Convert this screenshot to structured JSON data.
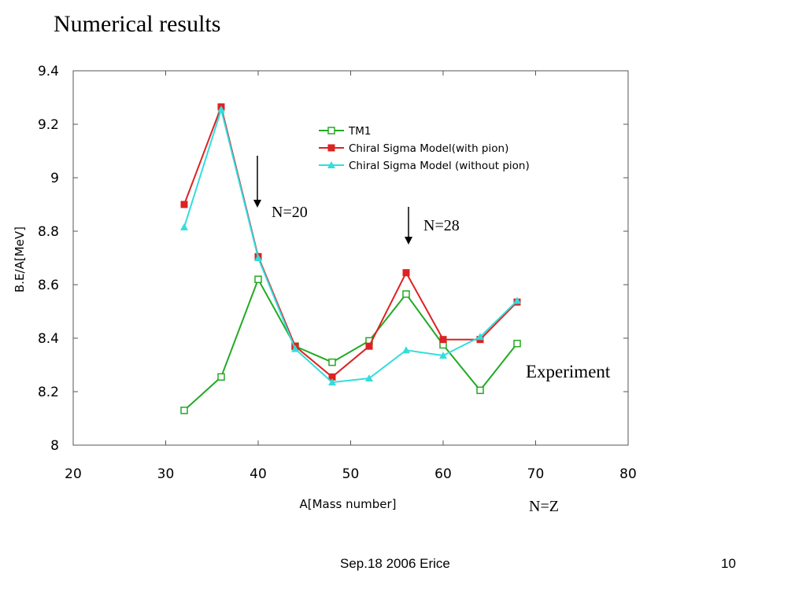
{
  "slide": {
    "title": "Numerical results",
    "footer_left": "Sep.18 2006 Erice",
    "footer_right": "10"
  },
  "chart_data": {
    "type": "line",
    "xlabel": "A[Mass number]",
    "ylabel": "B.E/A[MeV]",
    "xlim": [
      20,
      80
    ],
    "ylim": [
      8,
      9.4
    ],
    "xticks": [
      20,
      30,
      40,
      50,
      60,
      70,
      80
    ],
    "yticks": [
      8,
      8.2,
      8.4,
      8.6,
      8.8,
      9,
      9.2,
      9.4
    ],
    "ytick_labels": [
      "8",
      "8.2",
      "8.4",
      "8.6",
      "8.8",
      "9",
      "9.2",
      "9.4"
    ],
    "grid": false,
    "legend_position": "top-right",
    "x": [
      32,
      36,
      40,
      44,
      48,
      52,
      56,
      60,
      64,
      68
    ],
    "series": [
      {
        "name": "TM1",
        "color": "#22aa22",
        "marker": "open-square",
        "values": [
          8.13,
          8.255,
          8.62,
          8.37,
          8.31,
          8.39,
          8.565,
          8.375,
          8.205,
          8.38
        ]
      },
      {
        "name": "Chiral Sigma Model(with pion)",
        "color": "#dd2222",
        "marker": "filled-square",
        "values": [
          8.9,
          9.265,
          8.705,
          8.37,
          8.255,
          8.37,
          8.645,
          8.395,
          8.395,
          8.535
        ]
      },
      {
        "name": "Chiral Sigma Model (without pion)",
        "color": "#33dddd",
        "marker": "filled-triangle",
        "values": [
          8.815,
          9.255,
          8.7,
          8.36,
          8.235,
          8.25,
          8.355,
          8.335,
          8.405,
          8.54
        ]
      }
    ],
    "annotations": [
      {
        "text": "N=20",
        "arrow_x": 40
      },
      {
        "text": "N=28",
        "arrow_x": 56
      },
      {
        "text": "Experiment"
      },
      {
        "text": "N=Z"
      }
    ]
  }
}
